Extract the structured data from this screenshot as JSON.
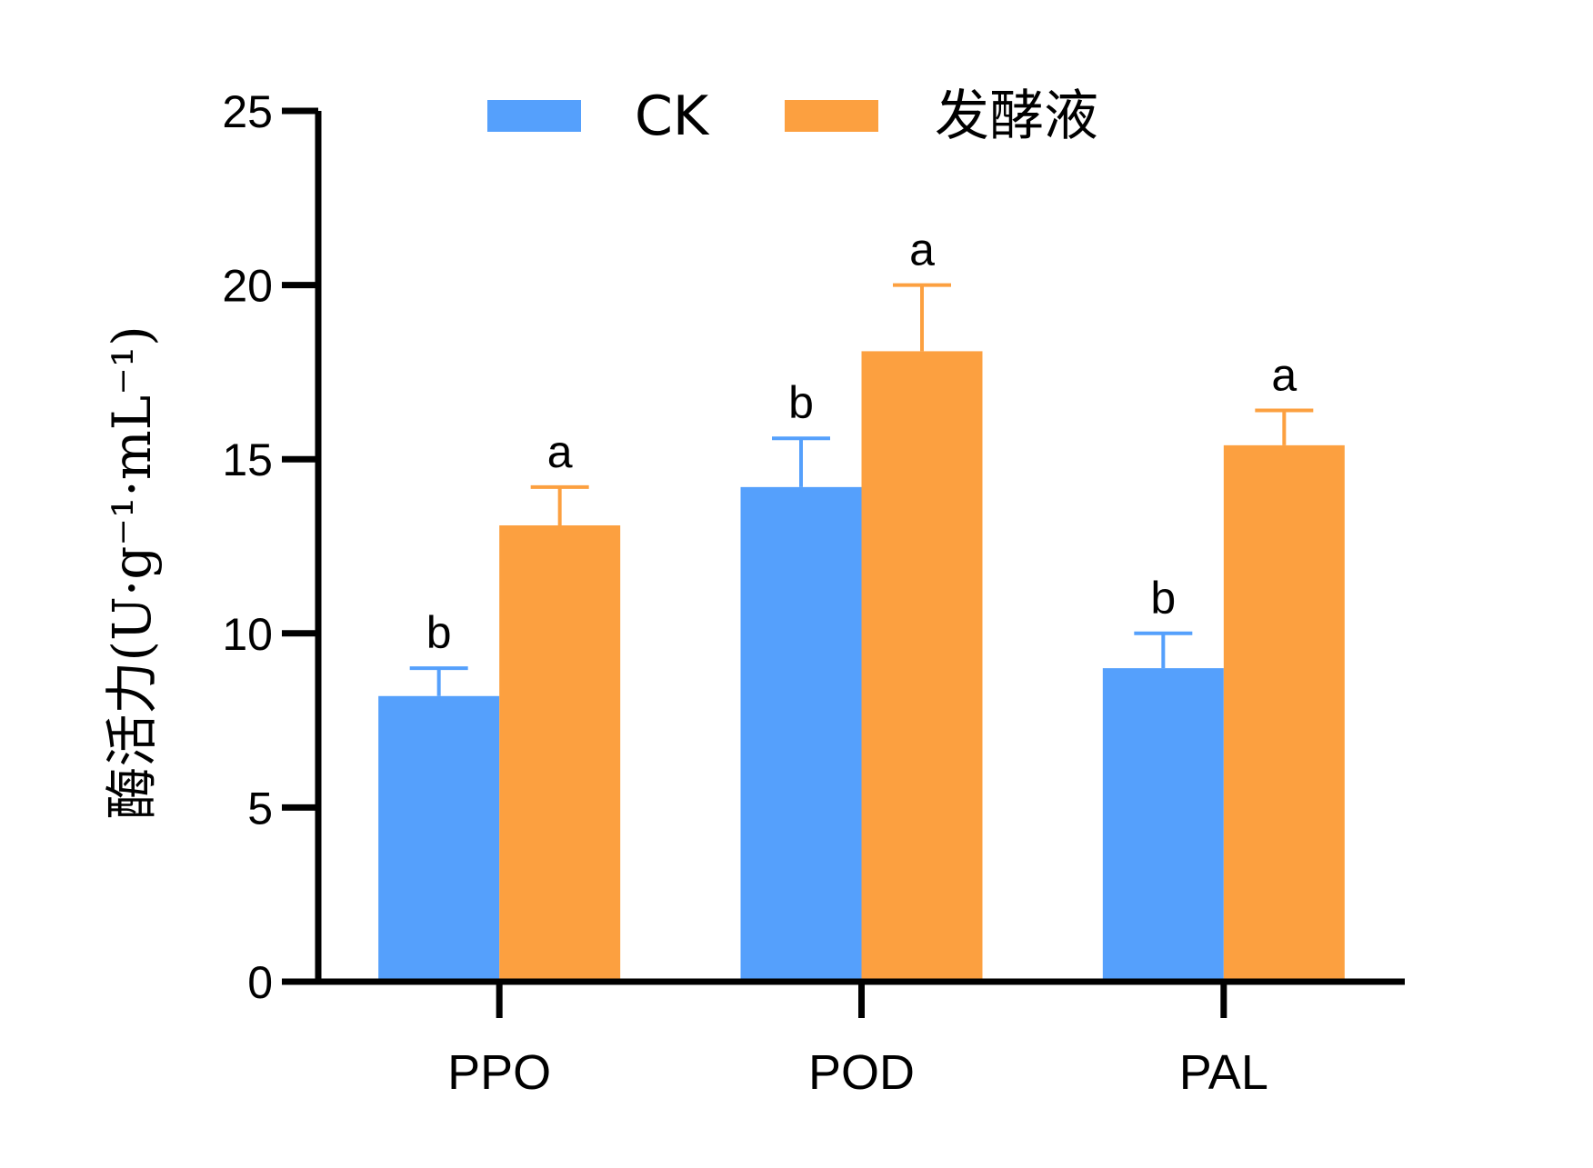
{
  "chart_data": {
    "type": "bar",
    "title": "",
    "xlabel": "",
    "ylabel": "酶活力(U·g⁻¹·mL⁻¹)",
    "ylim": [
      0,
      25
    ],
    "yticks": [
      0,
      5,
      10,
      15,
      20,
      25
    ],
    "grid": false,
    "legend": "top",
    "categories": [
      "PPO",
      "POD",
      "PAL"
    ],
    "series": [
      {
        "name": "CK",
        "color": "#55a0fc",
        "values": [
          8.2,
          14.2,
          9.0
        ],
        "errors": [
          0.8,
          1.4,
          1.0
        ],
        "significance": [
          "b",
          "b",
          "b"
        ]
      },
      {
        "name": "发酵液",
        "color": "#fca040",
        "values": [
          13.1,
          18.1,
          15.4
        ],
        "errors": [
          1.1,
          1.9,
          1.0
        ],
        "significance": [
          "a",
          "a",
          "a"
        ]
      }
    ]
  }
}
